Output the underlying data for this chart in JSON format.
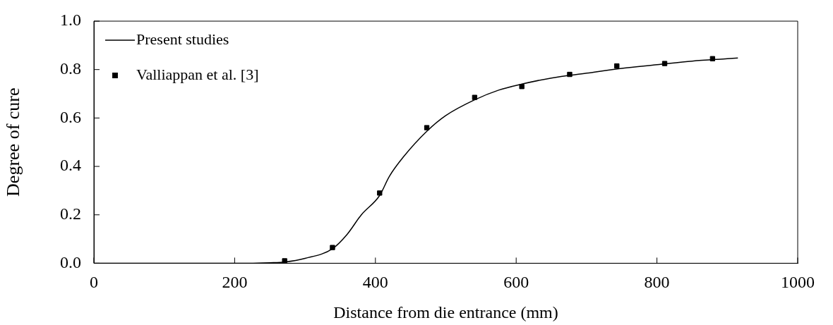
{
  "chart_data": {
    "type": "line",
    "xlabel": "Distance from die entrance (mm)",
    "ylabel": "Degree of cure",
    "xlim": [
      0,
      1000
    ],
    "xticks": [
      0,
      200,
      400,
      600,
      800,
      1000
    ],
    "ylim": [
      0,
      1
    ],
    "yticks": [
      {
        "value": 0,
        "label": "0.0"
      },
      {
        "value": 0.2,
        "label": "0.2"
      },
      {
        "value": 0.4,
        "label": "0.4"
      },
      {
        "value": 0.6,
        "label": "0.6"
      },
      {
        "value": 0.8,
        "label": "0.8"
      },
      {
        "value": 1,
        "label": "1.0"
      }
    ],
    "grid": false,
    "legend": "top left",
    "series": [
      {
        "name": "Present studies",
        "color": "#000000",
        "marker": "none",
        "line_style": "solid",
        "x": [
          0,
          220,
          250,
          271,
          300,
          339,
          360,
          380,
          406,
          420,
          440,
          473,
          500,
          541,
          575,
          608,
          650,
          700,
          750,
          800,
          850,
          900,
          915
        ],
        "values": [
          0,
          0,
          0.002,
          0.005,
          0.02,
          0.06,
          0.12,
          0.2,
          0.28,
          0.36,
          0.44,
          0.545,
          0.61,
          0.675,
          0.715,
          0.74,
          0.765,
          0.785,
          0.805,
          0.82,
          0.835,
          0.845,
          0.848
        ]
      },
      {
        "name": "Valliappan et al. [3]",
        "type": "scatter",
        "color": "#000000",
        "marker": "square",
        "x": [
          271,
          339,
          406,
          473,
          541,
          608,
          676,
          743,
          811,
          879
        ],
        "values": [
          0.01,
          0.065,
          0.29,
          0.56,
          0.685,
          0.73,
          0.78,
          0.815,
          0.825,
          0.845
        ]
      }
    ]
  }
}
